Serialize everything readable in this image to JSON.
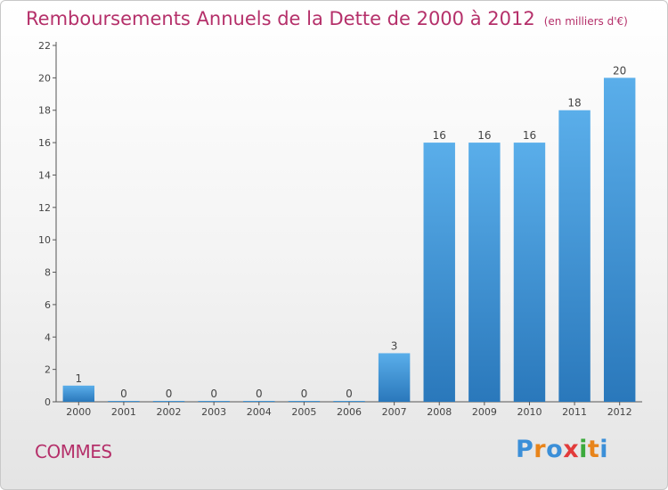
{
  "header": {
    "title": "Remboursements Annuels de la Dette de 2000 à 2012",
    "unit": "(en milliers d'€)"
  },
  "commune": "COMMES",
  "logo": {
    "letters": [
      "P",
      "r",
      "o",
      "x",
      "i",
      "t",
      "i"
    ]
  },
  "chart_data": {
    "type": "bar",
    "title": "Remboursements Annuels de la Dette de 2000 à 2012",
    "subtitle": "(en milliers d'€)",
    "xlabel": "",
    "ylabel": "",
    "categories": [
      "2000",
      "2001",
      "2002",
      "2003",
      "2004",
      "2005",
      "2006",
      "2007",
      "2008",
      "2009",
      "2010",
      "2011",
      "2012"
    ],
    "values": [
      1,
      0,
      0,
      0,
      0,
      0,
      0,
      3,
      16,
      16,
      16,
      18,
      20
    ],
    "ylim": [
      0,
      22
    ],
    "yticks": [
      0,
      2,
      4,
      6,
      8,
      10,
      12,
      14,
      16,
      18,
      20,
      22
    ],
    "grid": false,
    "legend": "none",
    "colors": {
      "bar_top": "#5aaeea",
      "bar_bottom": "#2a78bb",
      "axis": "#555555",
      "title": "#b5306a"
    }
  }
}
